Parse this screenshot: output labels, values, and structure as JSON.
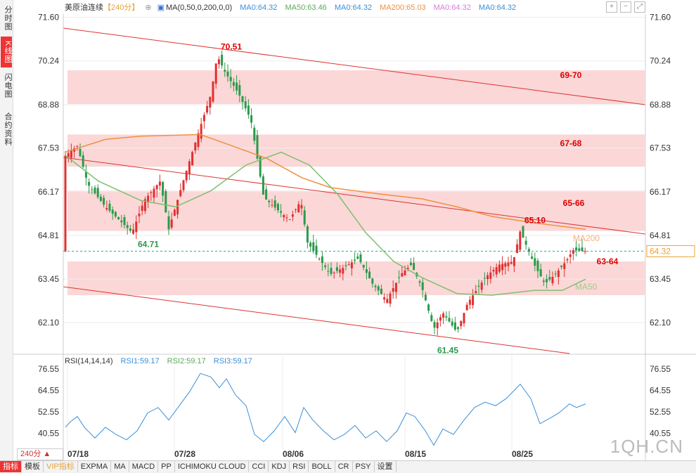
{
  "sidebar": {
    "tabs": [
      {
        "label": "分时图",
        "active": false
      },
      {
        "label": "K线图",
        "active": true
      },
      {
        "label": "闪电图",
        "active": false
      },
      {
        "label": "合约资料",
        "active": false
      }
    ]
  },
  "header": {
    "title": "美原油连续",
    "period_tag": "【240分】",
    "ma_params": "MA(0,50,0,200,0,0)",
    "ma_values": [
      {
        "label": "MA0:64.32",
        "color": "#3a8fd8"
      },
      {
        "label": "MA50:63.46",
        "color": "#5aab5a"
      },
      {
        "label": "MA0:64.32",
        "color": "#3a8fd8"
      },
      {
        "label": "MA200:65.03",
        "color": "#f0903a"
      },
      {
        "label": "MA0:64.32",
        "color": "#d97bd9"
      },
      {
        "label": "MA0:64.32",
        "color": "#3a8fd8"
      }
    ]
  },
  "rsi_header": {
    "params": "RSI(14,14,14)",
    "values": [
      {
        "label": "RSI1:59.17",
        "color": "#3a8fd8"
      },
      {
        "label": "RSI2:59.17",
        "color": "#5aab5a"
      },
      {
        "label": "RSI3:59.17",
        "color": "#3a8fd8"
      }
    ]
  },
  "chart_data": [
    {
      "type": "candlestick",
      "title": "美原油连续",
      "ylim": [
        61.2,
        71.7
      ],
      "yticks": [
        "71.60",
        "70.24",
        "68.88",
        "67.53",
        "66.17",
        "64.81",
        "63.45",
        "62.10"
      ],
      "xticks": [
        "07/18",
        "07/28",
        "08/06",
        "08/15",
        "08/25"
      ],
      "last_price": "64.32",
      "zones": [
        {
          "label": "69-70",
          "low": 68.9,
          "high": 69.95
        },
        {
          "label": "67-68",
          "low": 66.95,
          "high": 67.95
        },
        {
          "label": "65-66",
          "low": 64.95,
          "high": 66.2
        },
        {
          "label": "63-64",
          "low": 62.95,
          "high": 64.0
        }
      ],
      "annotations": [
        {
          "label": "70.51",
          "value": 70.51
        },
        {
          "label": "64.71",
          "value": 64.71
        },
        {
          "label": "65.10",
          "value": 65.1
        },
        {
          "label": "61.45",
          "value": 61.45
        },
        {
          "label": "MA200",
          "value": 64.81
        },
        {
          "label": "MA50",
          "value": 63.3
        }
      ]
    },
    {
      "type": "line",
      "title": "RSI(14,14,14)",
      "ylim": [
        33,
        80
      ],
      "yticks": [
        "76.55",
        "64.55",
        "52.55",
        "40.55"
      ],
      "series": [
        {
          "name": "RSI1",
          "color": "#3a8fd8"
        }
      ]
    }
  ],
  "bottom": {
    "period": "240分",
    "tabs": [
      "指标",
      "模板",
      "VIP指标",
      "EXPMA",
      "MA",
      "MACD",
      "PP",
      "ICHIMOKU CLOUD",
      "CCI",
      "KDJ",
      "RSI",
      "BOLL",
      "CR",
      "PSY",
      "设置"
    ]
  },
  "watermark": "1QH.CN"
}
